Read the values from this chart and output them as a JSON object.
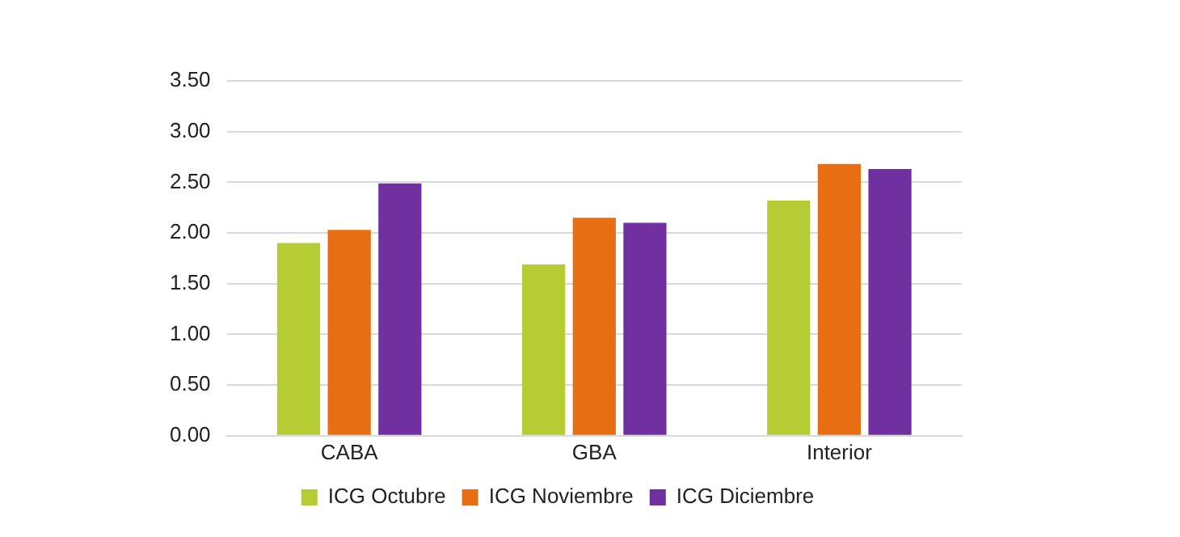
{
  "chart_data": {
    "type": "bar",
    "categories": [
      "CABA",
      "GBA",
      "Interior"
    ],
    "series": [
      {
        "name": "ICG Octubre",
        "color": "#b5cc34",
        "values": [
          1.9,
          1.69,
          2.32
        ]
      },
      {
        "name": "ICG Noviembre",
        "color": "#e86e13",
        "values": [
          2.03,
          2.15,
          2.68
        ]
      },
      {
        "name": "ICG Diciembre",
        "color": "#7030a0",
        "values": [
          2.49,
          2.1,
          2.63
        ]
      }
    ],
    "ylim": [
      0,
      3.5
    ],
    "yticks": [
      {
        "value": 0,
        "label": "0.00"
      },
      {
        "value": 0.5,
        "label": "0.50"
      },
      {
        "value": 1,
        "label": "1.00"
      },
      {
        "value": 1.5,
        "label": "1.50"
      },
      {
        "value": 2,
        "label": "2.00"
      },
      {
        "value": 2.5,
        "label": "2.50"
      },
      {
        "value": 3,
        "label": "3.00"
      },
      {
        "value": 3.5,
        "label": "3.50"
      }
    ],
    "grid": "y",
    "legend": "bottom"
  }
}
